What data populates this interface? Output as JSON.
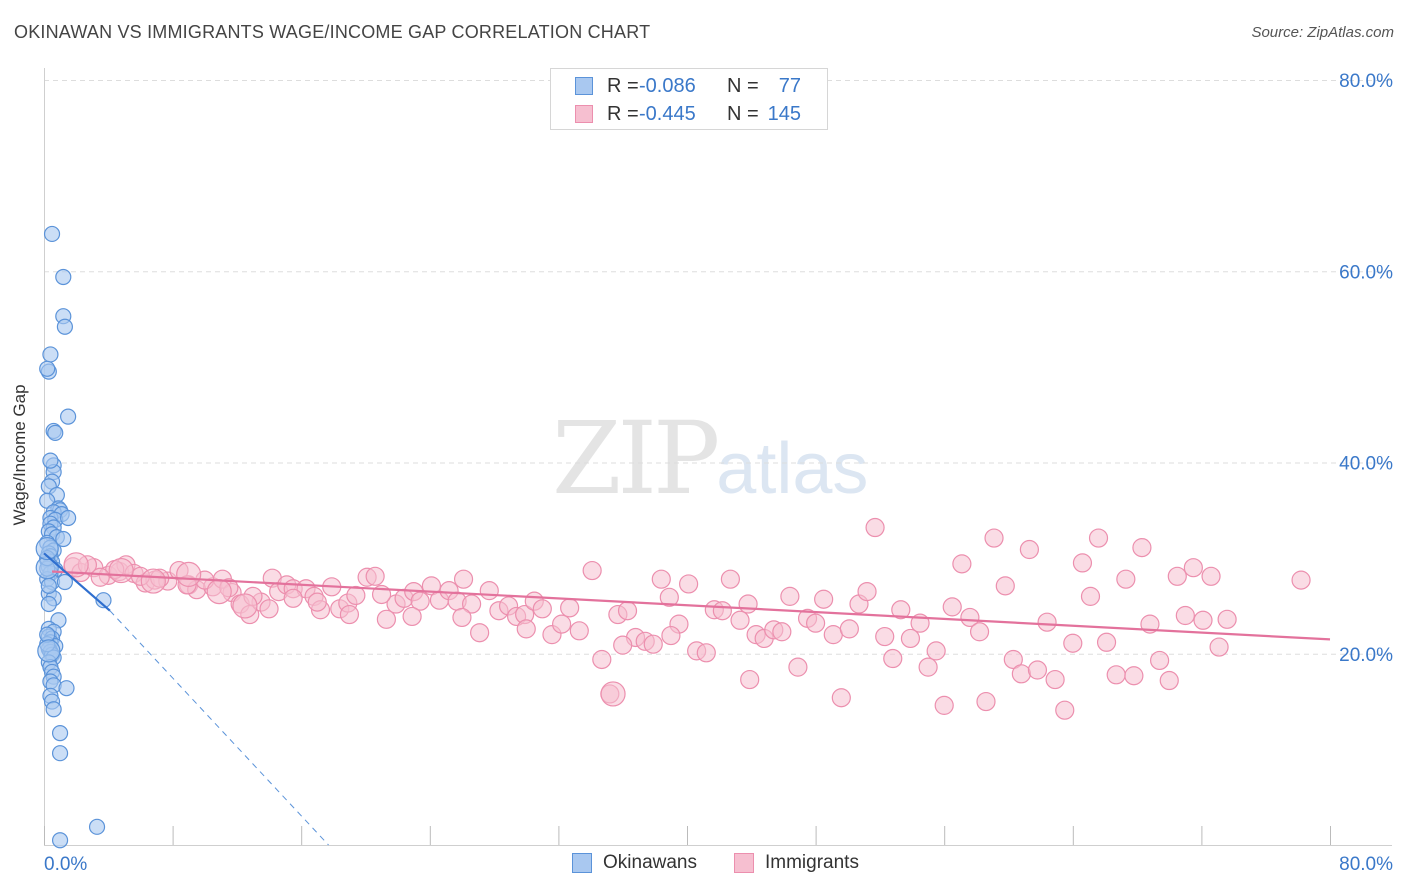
{
  "title": "OKINAWAN VS IMMIGRANTS WAGE/INCOME GAP CORRELATION CHART",
  "source": "Source: ZipAtlas.com",
  "watermark": {
    "zip": "ZIP",
    "atlas": "atlas"
  },
  "colors": {
    "blue_fill": "#a9c8f0",
    "blue_stroke": "#5b93d9",
    "blue_line": "#2f6fcf",
    "pink_fill": "#f6bfd0",
    "pink_stroke": "#ec8fae",
    "pink_line": "#e3729c",
    "axis_text": "#3a78c9",
    "grid": "#dddddd"
  },
  "legend": {
    "rows": [
      {
        "r_label": "R =",
        "r_value": "-0.086",
        "n_label": "N =",
        "n_value": "77",
        "series": "okinawans"
      },
      {
        "r_label": "R =",
        "r_value": "-0.445",
        "n_label": "N =",
        "n_value": "145",
        "series": "immigrants"
      }
    ]
  },
  "bottom_legend": {
    "items": [
      {
        "label": "Okinawans",
        "series": "okinawans"
      },
      {
        "label": "Immigrants",
        "series": "immigrants"
      }
    ]
  },
  "chart_data": {
    "type": "scatter",
    "title": "OKINAWAN VS IMMIGRANTS WAGE/INCOME GAP CORRELATION CHART",
    "xlabel": "",
    "ylabel": "Wage/Income Gap",
    "xlim": [
      0,
      80
    ],
    "ylim": [
      0,
      80
    ],
    "x_tick_labels": [
      "0.0%",
      "80.0%"
    ],
    "y_tick_labels": [
      {
        "value": 80,
        "label": "80.0%"
      },
      {
        "value": 60,
        "label": "60.0%"
      },
      {
        "value": 40,
        "label": "40.0%"
      },
      {
        "value": 20,
        "label": "20.0%"
      }
    ],
    "series": [
      {
        "name": "Okinawans",
        "key": "okinawans",
        "r": -0.086,
        "n": 77,
        "trend": {
          "x0": 0.0,
          "y0": 30.5,
          "x1": 4.1,
          "y1": 24.5,
          "dashed_to_x": 17.7,
          "dashed_to_y": 0.0
        },
        "points": [
          [
            0.5,
            63.9
          ],
          [
            1.2,
            59.4
          ],
          [
            1.2,
            55.3
          ],
          [
            1.3,
            54.2
          ],
          [
            0.4,
            51.3
          ],
          [
            0.3,
            49.5
          ],
          [
            0.2,
            49.8
          ],
          [
            1.5,
            44.8
          ],
          [
            0.6,
            43.3
          ],
          [
            0.7,
            43.1
          ],
          [
            0.6,
            39.7
          ],
          [
            0.6,
            39.0
          ],
          [
            0.4,
            40.2
          ],
          [
            0.5,
            38.0
          ],
          [
            0.3,
            37.5
          ],
          [
            0.8,
            36.6
          ],
          [
            0.2,
            36.0
          ],
          [
            0.9,
            35.2
          ],
          [
            1.0,
            35.0
          ],
          [
            0.6,
            34.8
          ],
          [
            1.1,
            34.6
          ],
          [
            0.4,
            34.2
          ],
          [
            0.7,
            34.0
          ],
          [
            1.5,
            34.2
          ],
          [
            0.4,
            33.6
          ],
          [
            0.6,
            33.2
          ],
          [
            0.3,
            32.8
          ],
          [
            0.5,
            32.5
          ],
          [
            0.8,
            32.2
          ],
          [
            1.2,
            32.0
          ],
          [
            0.2,
            31.6
          ],
          [
            0.4,
            31.1
          ],
          [
            0.6,
            30.8
          ],
          [
            0.3,
            30.5
          ],
          [
            0.4,
            30.2
          ],
          [
            0.2,
            29.8
          ],
          [
            0.5,
            29.6
          ],
          [
            0.3,
            29.1
          ],
          [
            0.7,
            28.8
          ],
          [
            0.4,
            28.4
          ],
          [
            0.2,
            27.8
          ],
          [
            0.5,
            27.5
          ],
          [
            1.3,
            27.5
          ],
          [
            0.3,
            26.3
          ],
          [
            0.6,
            25.8
          ],
          [
            3.7,
            25.6
          ],
          [
            0.3,
            25.2
          ],
          [
            0.9,
            23.5
          ],
          [
            0.3,
            22.6
          ],
          [
            0.6,
            22.3
          ],
          [
            0.3,
            21.8
          ],
          [
            0.5,
            21.6
          ],
          [
            0.4,
            21.2
          ],
          [
            0.7,
            20.8
          ],
          [
            0.3,
            20.5
          ],
          [
            0.4,
            20.2
          ],
          [
            0.5,
            19.9
          ],
          [
            0.6,
            19.6
          ],
          [
            0.3,
            19.1
          ],
          [
            0.4,
            18.6
          ],
          [
            0.5,
            18.1
          ],
          [
            0.6,
            17.6
          ],
          [
            0.4,
            17.1
          ],
          [
            0.6,
            16.7
          ],
          [
            1.4,
            16.4
          ],
          [
            0.4,
            15.6
          ],
          [
            0.5,
            15.0
          ],
          [
            0.6,
            14.2
          ],
          [
            1.0,
            11.7
          ],
          [
            1.0,
            9.6
          ],
          [
            3.3,
            1.9
          ],
          [
            1.0,
            0.5
          ],
          [
            0.2,
            28.9
          ],
          [
            0.2,
            30.0
          ],
          [
            0.3,
            27.1
          ],
          [
            0.2,
            21.0
          ],
          [
            0.2,
            22.0
          ]
        ],
        "big_points": [
          [
            0.2,
            29.0
          ],
          [
            0.3,
            20.3
          ],
          [
            0.2,
            31.0
          ]
        ]
      },
      {
        "name": "Immigrants",
        "key": "immigrants",
        "r": -0.445,
        "n": 145,
        "trend": {
          "x0": 0.5,
          "y0": 28.6,
          "x1": 80.0,
          "y1": 21.5
        },
        "points": [
          [
            1.8,
            29.1
          ],
          [
            2.3,
            28.5
          ],
          [
            3.1,
            29.0
          ],
          [
            4.0,
            28.2
          ],
          [
            4.7,
            28.6
          ],
          [
            5.1,
            29.3
          ],
          [
            5.6,
            28.4
          ],
          [
            6.3,
            27.4
          ],
          [
            6.9,
            27.7
          ],
          [
            7.7,
            27.6
          ],
          [
            8.4,
            28.7
          ],
          [
            9.0,
            27.2
          ],
          [
            9.5,
            26.7
          ],
          [
            10.5,
            27.0
          ],
          [
            11.1,
            27.8
          ],
          [
            11.7,
            26.4
          ],
          [
            12.2,
            25.2
          ],
          [
            12.8,
            24.1
          ],
          [
            13.5,
            25.4
          ],
          [
            14.2,
            27.9
          ],
          [
            14.6,
            26.5
          ],
          [
            15.1,
            27.2
          ],
          [
            15.5,
            26.8
          ],
          [
            16.3,
            26.8
          ],
          [
            16.8,
            26.0
          ],
          [
            17.2,
            24.6
          ],
          [
            17.9,
            27.0
          ],
          [
            18.4,
            24.7
          ],
          [
            18.9,
            25.3
          ],
          [
            19.4,
            26.1
          ],
          [
            20.1,
            28.0
          ],
          [
            20.6,
            28.1
          ],
          [
            21.3,
            23.6
          ],
          [
            21.9,
            25.2
          ],
          [
            22.4,
            25.8
          ],
          [
            23.0,
            26.5
          ],
          [
            23.4,
            25.5
          ],
          [
            24.1,
            27.1
          ],
          [
            24.6,
            25.6
          ],
          [
            25.2,
            26.6
          ],
          [
            25.7,
            25.5
          ],
          [
            26.1,
            27.8
          ],
          [
            26.6,
            25.2
          ],
          [
            27.1,
            22.2
          ],
          [
            27.7,
            26.6
          ],
          [
            28.3,
            24.5
          ],
          [
            28.9,
            25.0
          ],
          [
            29.4,
            23.9
          ],
          [
            29.9,
            24.1
          ],
          [
            30.5,
            25.5
          ],
          [
            31.0,
            24.7
          ],
          [
            31.6,
            22.0
          ],
          [
            32.2,
            23.1
          ],
          [
            32.7,
            24.8
          ],
          [
            33.3,
            22.4
          ],
          [
            34.1,
            28.7
          ],
          [
            34.7,
            19.4
          ],
          [
            35.2,
            15.8
          ],
          [
            35.7,
            24.1
          ],
          [
            36.3,
            24.5
          ],
          [
            36.8,
            21.7
          ],
          [
            37.4,
            21.3
          ],
          [
            37.9,
            21.0
          ],
          [
            38.4,
            27.8
          ],
          [
            38.9,
            25.9
          ],
          [
            39.5,
            23.1
          ],
          [
            40.1,
            27.3
          ],
          [
            40.6,
            20.3
          ],
          [
            41.2,
            20.1
          ],
          [
            41.7,
            24.6
          ],
          [
            42.2,
            24.5
          ],
          [
            42.7,
            27.8
          ],
          [
            43.3,
            23.5
          ],
          [
            43.8,
            25.2
          ],
          [
            44.3,
            22.0
          ],
          [
            44.8,
            21.6
          ],
          [
            45.4,
            22.5
          ],
          [
            45.9,
            22.3
          ],
          [
            46.4,
            26.0
          ],
          [
            46.9,
            18.6
          ],
          [
            47.5,
            23.7
          ],
          [
            48.0,
            23.2
          ],
          [
            48.5,
            25.7
          ],
          [
            49.1,
            22.0
          ],
          [
            49.6,
            15.4
          ],
          [
            50.1,
            22.6
          ],
          [
            50.7,
            25.2
          ],
          [
            51.2,
            26.5
          ],
          [
            51.7,
            33.2
          ],
          [
            52.3,
            21.8
          ],
          [
            52.8,
            19.5
          ],
          [
            53.3,
            24.6
          ],
          [
            53.9,
            21.6
          ],
          [
            54.5,
            23.2
          ],
          [
            55.0,
            18.6
          ],
          [
            55.5,
            20.3
          ],
          [
            56.0,
            14.6
          ],
          [
            56.5,
            24.9
          ],
          [
            57.1,
            29.4
          ],
          [
            57.6,
            23.8
          ],
          [
            58.2,
            22.3
          ],
          [
            58.6,
            15.0
          ],
          [
            59.1,
            32.1
          ],
          [
            59.8,
            27.1
          ],
          [
            60.3,
            19.4
          ],
          [
            60.8,
            17.9
          ],
          [
            61.3,
            30.9
          ],
          [
            61.8,
            18.3
          ],
          [
            62.4,
            23.3
          ],
          [
            62.9,
            17.3
          ],
          [
            63.5,
            14.1
          ],
          [
            64.0,
            21.1
          ],
          [
            64.6,
            29.5
          ],
          [
            65.1,
            26.0
          ],
          [
            65.6,
            32.1
          ],
          [
            66.1,
            21.2
          ],
          [
            66.7,
            17.8
          ],
          [
            67.3,
            27.8
          ],
          [
            67.8,
            17.7
          ],
          [
            68.3,
            31.1
          ],
          [
            68.8,
            23.1
          ],
          [
            69.4,
            19.3
          ],
          [
            70.0,
            17.2
          ],
          [
            70.5,
            28.1
          ],
          [
            71.0,
            24.0
          ],
          [
            71.5,
            29.0
          ],
          [
            72.1,
            23.5
          ],
          [
            72.6,
            28.1
          ],
          [
            73.1,
            20.7
          ],
          [
            73.6,
            23.6
          ],
          [
            78.2,
            27.7
          ],
          [
            43.9,
            17.3
          ],
          [
            36.0,
            20.9
          ],
          [
            39.0,
            21.9
          ],
          [
            30.0,
            22.6
          ],
          [
            26.0,
            23.8
          ],
          [
            19.0,
            24.1
          ],
          [
            17.0,
            25.4
          ],
          [
            15.5,
            25.8
          ],
          [
            14.0,
            24.7
          ],
          [
            13.0,
            26.0
          ],
          [
            11.5,
            26.9
          ],
          [
            10.0,
            27.7
          ],
          [
            8.9,
            27.2
          ],
          [
            7.2,
            27.9
          ],
          [
            6.0,
            28.1
          ],
          [
            4.4,
            28.8
          ],
          [
            3.5,
            28.0
          ],
          [
            2.7,
            29.3
          ],
          [
            21.0,
            26.2
          ],
          [
            22.9,
            23.9
          ]
        ],
        "big_points": [
          [
            2.0,
            29.3
          ],
          [
            4.8,
            28.7
          ],
          [
            6.8,
            27.6
          ],
          [
            9.0,
            28.3
          ],
          [
            10.9,
            26.5
          ],
          [
            12.5,
            25.0
          ],
          [
            35.4,
            15.8
          ]
        ]
      }
    ]
  }
}
